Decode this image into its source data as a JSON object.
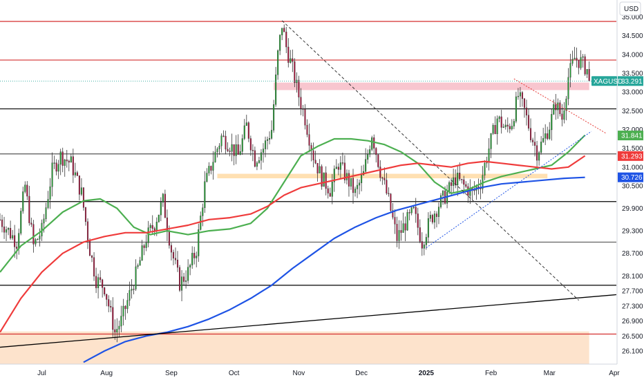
{
  "chart_data": {
    "type": "candlestick",
    "currency_label": "USD",
    "ylim": [
      25.75,
      35.45
    ],
    "y_ticks": [
      35.0,
      34.5,
      34.0,
      33.5,
      33.0,
      32.5,
      32.0,
      31.5,
      31.0,
      30.5,
      29.9,
      29.3,
      28.7,
      28.1,
      27.7,
      27.3,
      26.9,
      26.5,
      26.1
    ],
    "y_tick_labels": [
      "35.000",
      "34.500",
      "34.000",
      "33.500",
      "33.000",
      "32.500",
      "32.000",
      "31.500",
      "31.000",
      "30.500",
      "29.900",
      "29.300",
      "28.700",
      "28.100",
      "27.700",
      "27.300",
      "26.900",
      "26.500",
      "26.100"
    ],
    "x_range_days": [
      0,
      295
    ],
    "x_ticks": [
      {
        "label": "Jul",
        "day": 20
      },
      {
        "label": "Aug",
        "day": 51
      },
      {
        "label": "Sep",
        "day": 82
      },
      {
        "label": "Oct",
        "day": 112
      },
      {
        "label": "Nov",
        "day": 143
      },
      {
        "label": "Dec",
        "day": 173
      },
      {
        "label": "2025",
        "day": 204,
        "bold": true
      },
      {
        "label": "Feb",
        "day": 235
      },
      {
        "label": "Mar",
        "day": 263
      },
      {
        "label": "Apr",
        "day": 294
      }
    ],
    "close_anchors": [
      {
        "day": 0,
        "close": 29.6
      },
      {
        "day": 4,
        "close": 29.3
      },
      {
        "day": 8,
        "close": 29.0
      },
      {
        "day": 12,
        "close": 30.5
      },
      {
        "day": 16,
        "close": 28.9
      },
      {
        "day": 20,
        "close": 29.3
      },
      {
        "day": 25,
        "close": 30.9
      },
      {
        "day": 29,
        "close": 31.3
      },
      {
        "day": 34,
        "close": 31.1
      },
      {
        "day": 39,
        "close": 30.3
      },
      {
        "day": 43,
        "close": 28.8
      },
      {
        "day": 46,
        "close": 28.0
      },
      {
        "day": 50,
        "close": 27.8
      },
      {
        "day": 55,
        "close": 26.6
      },
      {
        "day": 58,
        "close": 26.9
      },
      {
        "day": 62,
        "close": 27.6
      },
      {
        "day": 66,
        "close": 28.3
      },
      {
        "day": 70,
        "close": 29.1
      },
      {
        "day": 74,
        "close": 29.5
      },
      {
        "day": 78,
        "close": 30.1
      },
      {
        "day": 82,
        "close": 28.8
      },
      {
        "day": 86,
        "close": 27.9
      },
      {
        "day": 90,
        "close": 28.2
      },
      {
        "day": 94,
        "close": 28.8
      },
      {
        "day": 98,
        "close": 30.5
      },
      {
        "day": 102,
        "close": 31.2
      },
      {
        "day": 106,
        "close": 31.8
      },
      {
        "day": 110,
        "close": 31.6
      },
      {
        "day": 114,
        "close": 31.3
      },
      {
        "day": 118,
        "close": 32.1
      },
      {
        "day": 122,
        "close": 31.2
      },
      {
        "day": 126,
        "close": 31.5
      },
      {
        "day": 130,
        "close": 32.0
      },
      {
        "day": 133,
        "close": 34.0
      },
      {
        "day": 135,
        "close": 34.8
      },
      {
        "day": 137,
        "close": 34.2
      },
      {
        "day": 140,
        "close": 33.6
      },
      {
        "day": 143,
        "close": 32.9
      },
      {
        "day": 146,
        "close": 32.3
      },
      {
        "day": 150,
        "close": 31.3
      },
      {
        "day": 154,
        "close": 30.7
      },
      {
        "day": 158,
        "close": 30.4
      },
      {
        "day": 162,
        "close": 31.1
      },
      {
        "day": 166,
        "close": 30.7
      },
      {
        "day": 170,
        "close": 30.3
      },
      {
        "day": 174,
        "close": 30.8
      },
      {
        "day": 178,
        "close": 31.9
      },
      {
        "day": 182,
        "close": 30.9
      },
      {
        "day": 186,
        "close": 30.1
      },
      {
        "day": 190,
        "close": 29.1
      },
      {
        "day": 194,
        "close": 29.5
      },
      {
        "day": 198,
        "close": 29.8
      },
      {
        "day": 202,
        "close": 29.0
      },
      {
        "day": 206,
        "close": 29.6
      },
      {
        "day": 210,
        "close": 30.0
      },
      {
        "day": 214,
        "close": 30.3
      },
      {
        "day": 218,
        "close": 30.7
      },
      {
        "day": 222,
        "close": 30.5
      },
      {
        "day": 226,
        "close": 30.3
      },
      {
        "day": 230,
        "close": 30.6
      },
      {
        "day": 234,
        "close": 31.5
      },
      {
        "day": 238,
        "close": 32.3
      },
      {
        "day": 242,
        "close": 32.0
      },
      {
        "day": 245,
        "close": 32.2
      },
      {
        "day": 248,
        "close": 32.9
      },
      {
        "day": 251,
        "close": 32.5
      },
      {
        "day": 254,
        "close": 31.9
      },
      {
        "day": 257,
        "close": 31.4
      },
      {
        "day": 260,
        "close": 31.7
      },
      {
        "day": 263,
        "close": 32.1
      },
      {
        "day": 266,
        "close": 32.7
      },
      {
        "day": 269,
        "close": 32.3
      },
      {
        "day": 272,
        "close": 33.4
      },
      {
        "day": 275,
        "close": 33.9
      },
      {
        "day": 278,
        "close": 33.8
      },
      {
        "day": 281,
        "close": 33.6
      },
      {
        "day": 282,
        "close": 33.291
      }
    ],
    "moving_averages": [
      {
        "color": "#4caf50",
        "last_value": 31.841,
        "label": "31.841",
        "points": [
          [
            0,
            28.2
          ],
          [
            10,
            28.9
          ],
          [
            20,
            29.3
          ],
          [
            30,
            29.8
          ],
          [
            40,
            30.1
          ],
          [
            48,
            30.15
          ],
          [
            56,
            29.9
          ],
          [
            64,
            29.4
          ],
          [
            72,
            29.2
          ],
          [
            80,
            29.3
          ],
          [
            90,
            29.2
          ],
          [
            100,
            29.3
          ],
          [
            110,
            29.35
          ],
          [
            120,
            29.5
          ],
          [
            128,
            29.9
          ],
          [
            136,
            30.6
          ],
          [
            144,
            31.3
          ],
          [
            152,
            31.55
          ],
          [
            160,
            31.75
          ],
          [
            168,
            31.75
          ],
          [
            176,
            31.7
          ],
          [
            184,
            31.6
          ],
          [
            192,
            31.4
          ],
          [
            200,
            31.1
          ],
          [
            208,
            30.6
          ],
          [
            216,
            30.3
          ],
          [
            224,
            30.4
          ],
          [
            232,
            30.6
          ],
          [
            240,
            30.75
          ],
          [
            248,
            30.85
          ],
          [
            256,
            30.95
          ],
          [
            264,
            31.05
          ],
          [
            272,
            31.4
          ],
          [
            280,
            31.85
          ]
        ]
      },
      {
        "color": "#ef3b3b",
        "last_value": 31.293,
        "label": "31.293",
        "points": [
          [
            0,
            26.6
          ],
          [
            10,
            27.5
          ],
          [
            20,
            28.2
          ],
          [
            30,
            28.7
          ],
          [
            40,
            29.0
          ],
          [
            50,
            29.15
          ],
          [
            60,
            29.25
          ],
          [
            70,
            29.25
          ],
          [
            80,
            29.35
          ],
          [
            90,
            29.45
          ],
          [
            100,
            29.6
          ],
          [
            110,
            29.65
          ],
          [
            120,
            29.75
          ],
          [
            128,
            29.95
          ],
          [
            136,
            30.25
          ],
          [
            144,
            30.45
          ],
          [
            152,
            30.55
          ],
          [
            160,
            30.65
          ],
          [
            168,
            30.75
          ],
          [
            176,
            30.85
          ],
          [
            184,
            30.95
          ],
          [
            192,
            31.05
          ],
          [
            200,
            31.1
          ],
          [
            208,
            31.05
          ],
          [
            216,
            31.0
          ],
          [
            224,
            31.1
          ],
          [
            232,
            31.15
          ],
          [
            240,
            31.1
          ],
          [
            248,
            31.05
          ],
          [
            256,
            31.0
          ],
          [
            264,
            30.95
          ],
          [
            272,
            31.0
          ],
          [
            280,
            31.3
          ]
        ]
      },
      {
        "color": "#1e53e5",
        "last_value": 30.726,
        "label": "30.726",
        "points": [
          [
            40,
            25.8
          ],
          [
            50,
            26.1
          ],
          [
            60,
            26.35
          ],
          [
            70,
            26.5
          ],
          [
            80,
            26.6
          ],
          [
            90,
            26.75
          ],
          [
            100,
            26.95
          ],
          [
            110,
            27.2
          ],
          [
            120,
            27.5
          ],
          [
            130,
            27.85
          ],
          [
            140,
            28.3
          ],
          [
            150,
            28.7
          ],
          [
            160,
            29.1
          ],
          [
            170,
            29.4
          ],
          [
            180,
            29.65
          ],
          [
            190,
            29.85
          ],
          [
            200,
            30.0
          ],
          [
            210,
            30.15
          ],
          [
            220,
            30.3
          ],
          [
            230,
            30.45
          ],
          [
            240,
            30.55
          ],
          [
            250,
            30.6
          ],
          [
            260,
            30.65
          ],
          [
            270,
            30.7
          ],
          [
            280,
            30.726
          ]
        ]
      }
    ],
    "horizontal_lines": [
      {
        "value": 34.88,
        "color": "#d32f2f"
      },
      {
        "value": 33.85,
        "color": "#d32f2f"
      },
      {
        "value": 32.55,
        "color": "#000000"
      },
      {
        "value": 31.35,
        "color": "#555555"
      },
      {
        "value": 30.08,
        "color": "#000000"
      },
      {
        "value": 29.0,
        "color": "#555555"
      },
      {
        "value": 27.85,
        "color": "#000000"
      },
      {
        "value": 26.55,
        "color": "#d32f2f"
      }
    ],
    "zones": [
      {
        "from": 33.05,
        "to": 33.25,
        "from_day": 131,
        "to_day": 282,
        "color": "#f8c6cf"
      },
      {
        "from": 30.7,
        "to": 30.82,
        "from_day": 104,
        "to_day": 262,
        "color": "#ffe0b2"
      },
      {
        "from": 25.75,
        "to": 26.62,
        "from_day": 0,
        "to_day": 282,
        "color": "#fde3cc"
      }
    ],
    "trendlines": [
      {
        "from": [
          135,
          34.9
        ],
        "to": [
          277,
          27.45
        ],
        "color": "#333333",
        "dash": "4 3"
      },
      {
        "from": [
          0,
          26.2
        ],
        "to": [
          295,
          27.6
        ],
        "color": "#000000",
        "dash": ""
      },
      {
        "from": [
          204,
          28.85
        ],
        "to": [
          283,
          31.95
        ],
        "color": "#1e53e5",
        "dash": "2 2"
      },
      {
        "from": [
          246,
          33.35
        ],
        "to": [
          290,
          31.9
        ],
        "color": "#e53935",
        "dash": "2 2"
      }
    ],
    "last_price": {
      "value": 33.291,
      "label": "33.291",
      "symbol": "XAGUSD",
      "color": "#26a69a"
    }
  }
}
